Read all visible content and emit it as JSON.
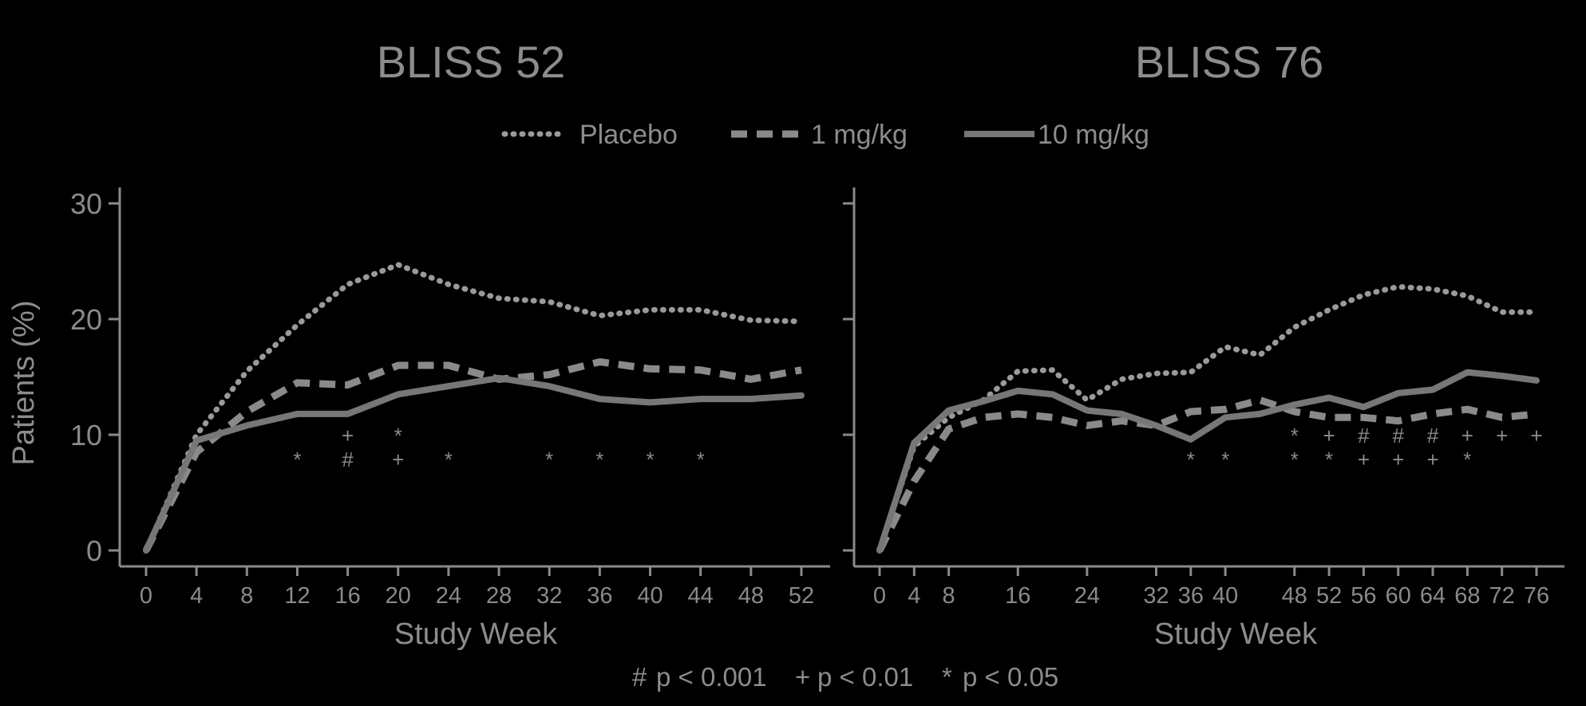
{
  "colors": {
    "background": "#000000",
    "placebo": "#9a9a9a",
    "dose1": "#8a8a8a",
    "dose10": "#777777",
    "axis": "#8a8a8a",
    "text": "#8c8c8c"
  },
  "legend": [
    {
      "key": "placebo",
      "label": "Placebo",
      "style": "dotted"
    },
    {
      "key": "dose1",
      "label": "1 mg/kg",
      "style": "dashed"
    },
    {
      "key": "dose10",
      "label": "10 mg/kg",
      "style": "solid"
    }
  ],
  "footnote": {
    "items": [
      {
        "symbol": "#",
        "text": "p < 0.001"
      },
      {
        "symbol": "+",
        "text": "p < 0.01"
      },
      {
        "symbol": "*",
        "text": "p < 0.05"
      }
    ]
  },
  "chart_data": [
    {
      "type": "line",
      "title": "BLISS 52",
      "xlabel": "Study Week",
      "ylabel": "Patients (%)",
      "ylim": [
        0,
        30
      ],
      "yticks": [
        0,
        10,
        20,
        30
      ],
      "xlim": [
        0,
        52
      ],
      "xticks": [
        0,
        4,
        8,
        12,
        16,
        20,
        24,
        28,
        32,
        36,
        40,
        44,
        48,
        52
      ],
      "legend_position": "top-center",
      "grid": false,
      "series": [
        {
          "key": "placebo",
          "name": "Placebo",
          "x": [
            0,
            4,
            8,
            12,
            16,
            20,
            24,
            28,
            32,
            36,
            40,
            44,
            48,
            52
          ],
          "y": [
            0,
            10,
            15.5,
            19.5,
            23,
            24.7,
            23,
            21.8,
            21.5,
            20.3,
            20.8,
            20.8,
            19.9,
            19.8
          ]
        },
        {
          "key": "dose1",
          "name": "1 mg/kg",
          "x": [
            0,
            4,
            8,
            12,
            16,
            20,
            24,
            28,
            32,
            36,
            40,
            44,
            48,
            52
          ],
          "y": [
            0,
            8.5,
            12,
            14.5,
            14.3,
            16,
            16,
            14.8,
            15.2,
            16.3,
            15.7,
            15.6,
            14.8,
            15.6
          ]
        },
        {
          "key": "dose10",
          "name": "10 mg/kg",
          "x": [
            0,
            4,
            8,
            12,
            16,
            20,
            24,
            28,
            32,
            36,
            40,
            44,
            48,
            52
          ],
          "y": [
            0,
            9.5,
            10.8,
            11.8,
            11.8,
            13.5,
            14.2,
            14.9,
            14.2,
            13.1,
            12.8,
            13.1,
            13.1,
            13.4
          ]
        }
      ],
      "significance": [
        {
          "x": 12,
          "upper": "",
          "lower": "*"
        },
        {
          "x": 16,
          "upper": "+",
          "lower": "#"
        },
        {
          "x": 20,
          "upper": "*",
          "lower": "+"
        },
        {
          "x": 24,
          "upper": "",
          "lower": "*"
        },
        {
          "x": 32,
          "upper": "",
          "lower": "*"
        },
        {
          "x": 36,
          "upper": "",
          "lower": "*"
        },
        {
          "x": 40,
          "upper": "",
          "lower": "*"
        },
        {
          "x": 44,
          "upper": "",
          "lower": "*"
        }
      ]
    },
    {
      "type": "line",
      "title": "BLISS 76",
      "xlabel": "Study Week",
      "ylabel": "",
      "ylim": [
        0,
        30
      ],
      "yticks": [
        0,
        10,
        20,
        30
      ],
      "xlim": [
        0,
        76
      ],
      "xticks": [
        0,
        4,
        8,
        16,
        24,
        32,
        36,
        40,
        48,
        52,
        56,
        60,
        64,
        68,
        72,
        76
      ],
      "legend_position": "top-center",
      "grid": false,
      "series": [
        {
          "key": "placebo",
          "name": "Placebo",
          "x": [
            0,
            4,
            8,
            12,
            16,
            20,
            24,
            28,
            32,
            36,
            40,
            44,
            48,
            52,
            56,
            60,
            64,
            68,
            72,
            76
          ],
          "y": [
            0,
            9,
            11.5,
            13,
            15.5,
            15.6,
            13,
            14.8,
            15.3,
            15.4,
            17.6,
            16.9,
            19.3,
            20.8,
            22.1,
            22.8,
            22.6,
            22,
            20.6,
            20.6
          ]
        },
        {
          "key": "dose1",
          "name": "1 mg/kg",
          "x": [
            0,
            4,
            8,
            12,
            16,
            20,
            24,
            28,
            32,
            36,
            40,
            44,
            48,
            52,
            56,
            60,
            64,
            68,
            72,
            76
          ],
          "y": [
            0,
            6,
            10.5,
            11.5,
            11.8,
            11.5,
            10.8,
            11.2,
            10.8,
            12,
            12.2,
            13,
            12,
            11.5,
            11.5,
            11.2,
            11.8,
            12.2,
            11.5,
            11.8
          ]
        },
        {
          "key": "dose10",
          "name": "10 mg/kg",
          "x": [
            0,
            4,
            8,
            12,
            16,
            20,
            24,
            28,
            32,
            36,
            40,
            44,
            48,
            52,
            56,
            60,
            64,
            68,
            72,
            76
          ],
          "y": [
            0,
            9.3,
            12.1,
            12.9,
            13.8,
            13.5,
            12.1,
            11.8,
            10.8,
            9.6,
            11.5,
            11.8,
            12.6,
            13.2,
            12.4,
            13.6,
            13.9,
            15.4,
            15.1,
            14.7
          ]
        }
      ],
      "significance": [
        {
          "x": 36,
          "upper": "",
          "lower": "*"
        },
        {
          "x": 40,
          "upper": "",
          "lower": "*"
        },
        {
          "x": 48,
          "upper": "*",
          "lower": "*"
        },
        {
          "x": 52,
          "upper": "+",
          "lower": "*"
        },
        {
          "x": 56,
          "upper": "#",
          "lower": "+"
        },
        {
          "x": 60,
          "upper": "#",
          "lower": "+"
        },
        {
          "x": 64,
          "upper": "#",
          "lower": "+"
        },
        {
          "x": 68,
          "upper": "+",
          "lower": "*"
        },
        {
          "x": 72,
          "upper": "+",
          "lower": ""
        },
        {
          "x": 76,
          "upper": "+",
          "lower": ""
        }
      ]
    }
  ]
}
